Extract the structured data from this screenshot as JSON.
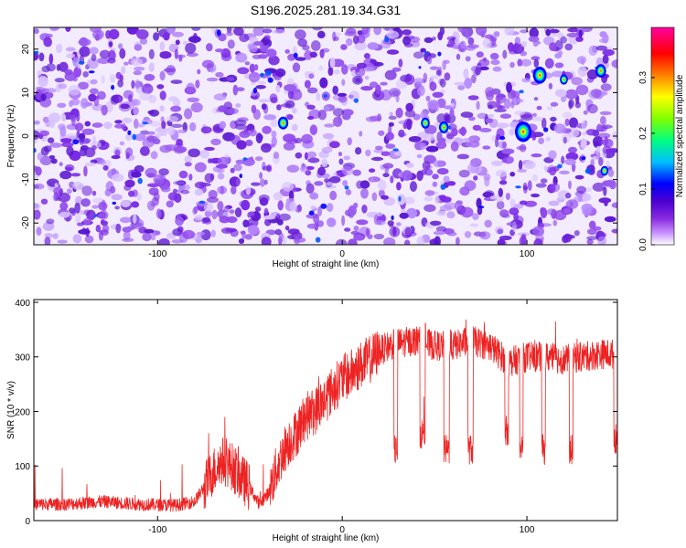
{
  "title": "S196.2025.281.19.34.G31",
  "chart_data": [
    {
      "type": "heatmap",
      "title": "S196.2025.281.19.34.G31",
      "xlabel": "Height of straight line (km)",
      "ylabel": "Frequency (Hz)",
      "xlim": [
        -167,
        149
      ],
      "ylim": [
        -25,
        25
      ],
      "xticks": [
        "-100",
        "0",
        "100"
      ],
      "yticks": [
        "-20",
        "-10",
        "0",
        "10",
        "20"
      ],
      "colorbar": {
        "label": "Normalized spectral amplitude",
        "range": [
          0,
          0.39
        ],
        "ticks": [
          "0.0",
          "0.1",
          "0.2",
          "0.3"
        ],
        "colors": [
          "#ffffff",
          "#cc99ff",
          "#8a2be2",
          "#5a00d0",
          "#0000ff",
          "#00bfff",
          "#00ff80",
          "#80ff00",
          "#ffff00",
          "#ff8000",
          "#ff0000",
          "#ff00a0"
        ]
      },
      "hotspots": [
        {
          "x": 98,
          "y": 1,
          "amplitude": 0.33
        },
        {
          "x": 107,
          "y": 14,
          "amplitude": 0.25
        },
        {
          "x": 140,
          "y": 15,
          "amplitude": 0.17
        },
        {
          "x": -32,
          "y": 3,
          "amplitude": 0.16
        },
        {
          "x": 45,
          "y": 3,
          "amplitude": 0.12
        },
        {
          "x": 55,
          "y": 2,
          "amplitude": 0.14
        },
        {
          "x": 120,
          "y": 13,
          "amplitude": 0.1
        },
        {
          "x": 142,
          "y": -8,
          "amplitude": 0.09
        }
      ]
    },
    {
      "type": "line",
      "xlabel": "Height of straight line (km)",
      "ylabel": "SNR (10 * v/v)",
      "xlim": [
        -167,
        149
      ],
      "ylim": [
        0,
        405
      ],
      "xticks": [
        "-100",
        "0",
        "100"
      ],
      "yticks": [
        "0",
        "100",
        "200",
        "300",
        "400"
      ],
      "series": [
        {
          "name": "SNR",
          "color": "#ee2222",
          "x": [
            -167,
            -150,
            -130,
            -110,
            -90,
            -80,
            -75,
            -70,
            -65,
            -60,
            -55,
            -50,
            -45,
            -40,
            -35,
            -30,
            -25,
            -20,
            -15,
            -10,
            -5,
            0,
            5,
            10,
            15,
            20,
            25,
            30,
            40,
            50,
            60,
            70,
            80,
            90,
            100,
            110,
            120,
            130,
            140,
            149
          ],
          "y": [
            30,
            30,
            35,
            30,
            28,
            35,
            60,
            90,
            110,
            100,
            80,
            60,
            30,
            50,
            100,
            140,
            160,
            190,
            200,
            220,
            240,
            260,
            270,
            285,
            295,
            310,
            320,
            325,
            330,
            320,
            320,
            330,
            320,
            290,
            300,
            300,
            295,
            300,
            305,
            305
          ]
        }
      ],
      "dropouts": [
        {
          "from": 28,
          "to": 30,
          "value": 130
        },
        {
          "from": 42,
          "to": 45,
          "value": 160
        },
        {
          "from": 55,
          "to": 58,
          "value": 130
        },
        {
          "from": 68,
          "to": 71,
          "value": 130
        },
        {
          "from": 88,
          "to": 90,
          "value": 165
        },
        {
          "from": 96,
          "to": 98,
          "value": 130
        },
        {
          "from": 108,
          "to": 110,
          "value": 130
        },
        {
          "from": 123,
          "to": 125,
          "value": 130
        },
        {
          "from": 147,
          "to": 149,
          "value": 150
        }
      ]
    }
  ]
}
